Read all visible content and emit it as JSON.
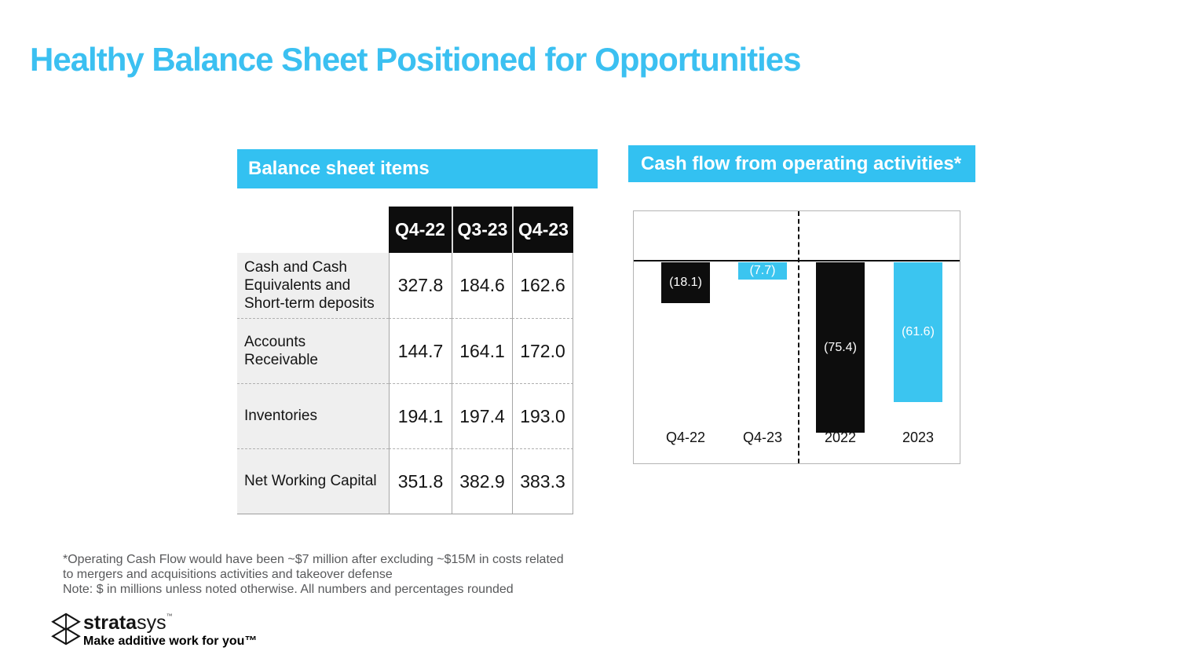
{
  "title": "Healthy Balance Sheet Positioned for Opportunities",
  "balance_sheet": {
    "header": "Balance sheet items",
    "columns": [
      "Q4-22",
      "Q3-23",
      "Q4-23"
    ],
    "rows": [
      {
        "label": "Cash and Cash Equivalents and Short-term deposits",
        "values": [
          "327.8",
          "184.6",
          "162.6"
        ]
      },
      {
        "label": "Accounts Receivable",
        "values": [
          "144.7",
          "164.1",
          "172.0"
        ]
      },
      {
        "label": "Inventories",
        "values": [
          "194.1",
          "197.4",
          "193.0"
        ]
      },
      {
        "label": "Net Working Capital",
        "values": [
          "351.8",
          "382.9",
          "383.3"
        ]
      }
    ]
  },
  "cash_flow": {
    "header": "Cash flow from operating activities*"
  },
  "chart_data": {
    "type": "bar",
    "title": "Cash flow from operating activities*",
    "categories": [
      "Q4-22",
      "Q4-23",
      "2022",
      "2023"
    ],
    "values": [
      -18.1,
      -7.7,
      -75.4,
      -61.6
    ],
    "data_labels": [
      "(18.1)",
      "(7.7)",
      "(75.4)",
      "(61.6)"
    ],
    "bar_colors": [
      "#0d0d0d",
      "#3bc5f0",
      "#0d0d0d",
      "#3bc5f0"
    ],
    "label_colors": [
      "#ffffff",
      "#ffffff",
      "#ffffff",
      "#ffffff"
    ],
    "ylim": [
      -90,
      22
    ],
    "grid": false,
    "legend": "none",
    "separator_after_index": 1,
    "xlabel": "",
    "ylabel": "",
    "units": "$ millions"
  },
  "footnote": {
    "line1": "*Operating Cash Flow would have been ~$7 million after excluding ~$15M in costs related",
    "line2": "to mergers and acquisitions activities and takeover defense",
    "line3": "Note: $ in millions unless noted otherwise. All numbers and percentages rounded"
  },
  "logo": {
    "brand_bold": "strata",
    "brand_light": "sys",
    "trademark": "™",
    "tagline": "Make additive work for you™"
  },
  "colors": {
    "accent_cyan": "#33c1f1",
    "title_cyan": "#3bc0f1",
    "bar_black": "#0d0d0d",
    "bar_cyan": "#3bc5f0",
    "footnote_gray": "#58595b"
  }
}
